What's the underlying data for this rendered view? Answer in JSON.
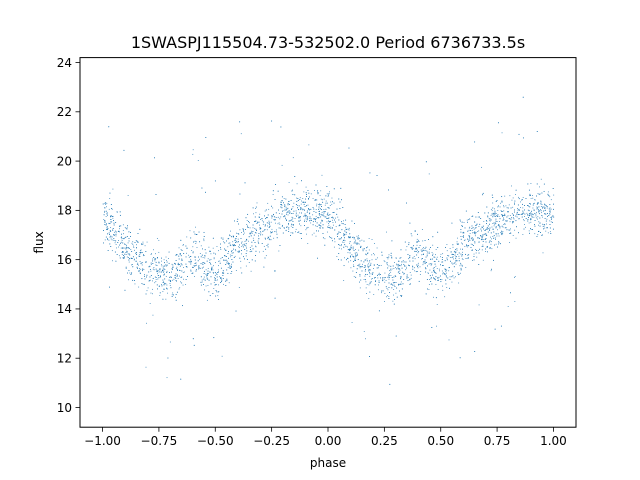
{
  "chart_data": {
    "type": "scatter",
    "title": "1SWASPJ115504.73-532502.0 Period 6736733.5s",
    "xlabel": "phase",
    "ylabel": "flux",
    "xlim": [
      -1.1,
      1.1
    ],
    "ylim": [
      9.2,
      24.2
    ],
    "xticks": [
      "−1.00",
      "−0.75",
      "−0.50",
      "−0.25",
      "0.00",
      "0.25",
      "0.50",
      "0.75",
      "1.00"
    ],
    "yticks": [
      "10",
      "12",
      "14",
      "16",
      "18",
      "20",
      "22",
      "24"
    ],
    "grid": false,
    "marker_color": "#1f77b4",
    "series_profile": {
      "phase": [
        -1.0,
        -0.9,
        -0.8,
        -0.7,
        -0.6,
        -0.5,
        -0.4,
        -0.3,
        -0.2,
        -0.1,
        0.0,
        0.1,
        0.2,
        0.3,
        0.4,
        0.5,
        0.6,
        0.7,
        0.8,
        0.9,
        1.0
      ],
      "median_flux": [
        17.8,
        16.5,
        15.6,
        15.3,
        16.3,
        15.4,
        16.7,
        17.1,
        17.9,
        18.0,
        17.8,
        16.5,
        15.6,
        15.3,
        16.3,
        15.4,
        16.7,
        17.1,
        17.9,
        18.0,
        17.8
      ]
    }
  }
}
